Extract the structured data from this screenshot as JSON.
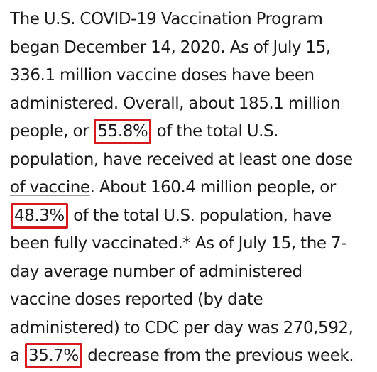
{
  "paragraph": {
    "line1": "The U.S. COVID-19 Vaccination Program",
    "line2": "began December 14, 2020. As of July 15,",
    "line3": "336.1 million vaccine doses have been",
    "line4": "administered. Overall, about 185.1 million",
    "line5_pre": "people, or ",
    "highlight1": "55.8%",
    "line5_post": " of the total U.S.",
    "line6": "population, have received at least one dose",
    "line7_link": "of vaccine",
    "line7_rest": ". About 160.4 million people, or",
    "highlight2": "48.3%",
    "line8_post": " of the total U.S. population, have",
    "line9": "been fully vaccinated.* As of July 15, the 7-",
    "line10": "day average number of administered",
    "line11": "vaccine doses reported (by date",
    "line12": "administered) to CDC per day was 270,592,",
    "line13_pre": "a ",
    "highlight3": "35.7%",
    "line13_post": " decrease from the previous week."
  },
  "colors": {
    "text": "#1a1a1a",
    "highlight_border": "#d71920"
  }
}
